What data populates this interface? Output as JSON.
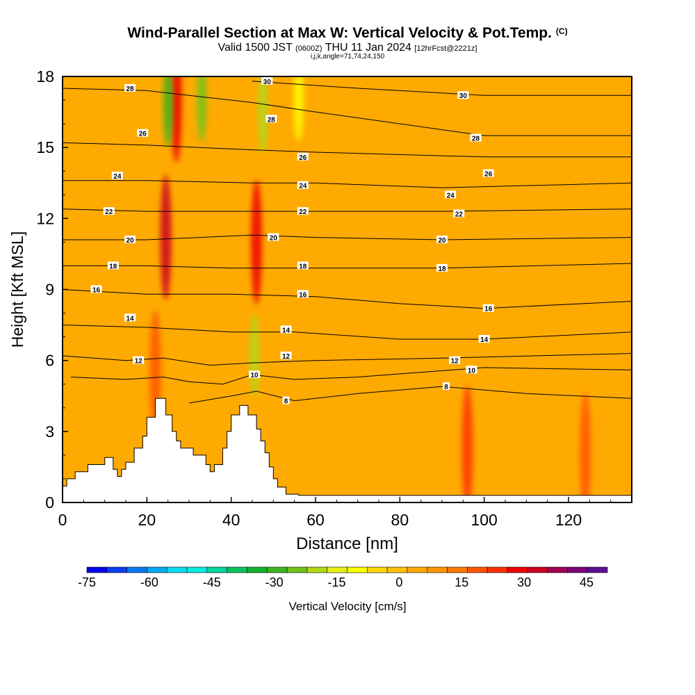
{
  "header": {
    "title": "Wind-Parallel Section at Max W: Vertical Velocity & Pot.Temp.",
    "copyright": "(C)",
    "valid_prefix": "Valid 1500 JST",
    "valid_utc": "(0600Z)",
    "valid_date": "THU 11 Jan 2024",
    "forecast": "[12hrFcst@2221z]",
    "params": "i,j,k,angle=71,74,24,150"
  },
  "chart_data": {
    "type": "heatmap",
    "xlabel": "Distance [nm]",
    "ylabel": "Height [Kft MSL]",
    "xlim": [
      0,
      135
    ],
    "ylim": [
      0,
      18
    ],
    "x_ticks": [
      0,
      20,
      40,
      60,
      80,
      100,
      120
    ],
    "y_ticks": [
      0,
      3,
      6,
      9,
      12,
      15,
      18
    ],
    "grid": false,
    "colorbar": {
      "label": "Vertical Velocity [cm/s]",
      "tick_labels": [
        -75,
        -60,
        -45,
        -30,
        -15,
        0,
        15,
        30,
        45
      ],
      "range": [
        -75,
        50
      ],
      "colors": [
        "#0000ee",
        "#0a3fee",
        "#0b77ee",
        "#00aaee",
        "#00ddee",
        "#00eedd",
        "#00d49f",
        "#0bc15f",
        "#11b02c",
        "#3eb51e",
        "#6fc41a",
        "#b0d81a",
        "#e6ef10",
        "#ffff00",
        "#ffd700",
        "#ffc000",
        "#ffaa00",
        "#ff9500",
        "#ff7a00",
        "#ff5500",
        "#ff3000",
        "#ee0000",
        "#cc0022",
        "#a00055",
        "#7a0077",
        "#5a1090"
      ]
    },
    "background_w_cms": 5,
    "terrain": {
      "x": [
        0,
        1,
        1,
        3,
        3,
        6,
        6,
        10,
        10,
        12,
        12,
        13,
        13,
        14,
        14,
        15,
        15,
        17,
        17,
        19,
        19,
        20,
        20,
        22,
        22,
        24.5,
        24.5,
        26,
        26,
        27,
        27,
        28,
        28,
        31,
        31,
        34,
        34,
        35,
        35,
        36,
        36,
        38,
        38,
        39,
        39,
        40,
        40,
        42,
        42,
        44,
        44,
        46,
        46,
        47,
        47,
        48,
        48,
        49,
        49,
        50,
        50,
        51,
        51,
        53,
        53,
        56,
        56,
        135
      ],
      "y": [
        0.7,
        0.7,
        1.0,
        1.0,
        1.3,
        1.3,
        1.6,
        1.6,
        1.9,
        1.9,
        1.4,
        1.4,
        1.1,
        1.1,
        1.4,
        1.4,
        1.7,
        1.7,
        2.3,
        2.3,
        2.8,
        2.8,
        3.6,
        3.6,
        4.4,
        4.4,
        3.7,
        3.7,
        3.0,
        3.0,
        2.6,
        2.6,
        2.3,
        2.3,
        2.0,
        2.0,
        1.6,
        1.6,
        1.3,
        1.3,
        1.6,
        1.6,
        2.3,
        2.3,
        3.0,
        3.0,
        3.7,
        3.7,
        4.1,
        4.1,
        3.7,
        3.7,
        3.1,
        3.1,
        2.6,
        2.6,
        2.1,
        2.1,
        1.5,
        1.5,
        1.0,
        1.0,
        0.65,
        0.65,
        0.35,
        0.35,
        0.3,
        0.3
      ]
    },
    "updrafts": [
      {
        "x": 24.5,
        "y": 11.2,
        "w": 35
      },
      {
        "x": 27,
        "y": 17,
        "w": 30
      },
      {
        "x": 46,
        "y": 11.0,
        "w": 30
      },
      {
        "x": 96,
        "y": 2.3,
        "w": 25
      },
      {
        "x": 22,
        "y": 5.5,
        "w": 20
      },
      {
        "x": 124,
        "y": 2.0,
        "w": 18
      }
    ],
    "downdrafts": [
      {
        "x": 25,
        "y": 16.8,
        "w": -30
      },
      {
        "x": 33,
        "y": 17.0,
        "w": -25
      },
      {
        "x": 47.5,
        "y": 16.5,
        "w": -20
      },
      {
        "x": 45.5,
        "y": 6.2,
        "w": -20
      },
      {
        "x": 56,
        "y": 17.0,
        "w": -10
      }
    ],
    "theta_contours": [
      {
        "label": "8",
        "points": [
          [
            30,
            4.2
          ],
          [
            40,
            4.5
          ],
          [
            46,
            4.7
          ],
          [
            55,
            4.3
          ],
          [
            70,
            4.6
          ],
          [
            90,
            4.9
          ],
          [
            110,
            4.6
          ],
          [
            135,
            4.4
          ]
        ]
      },
      {
        "label": "10",
        "points": [
          [
            2,
            5.3
          ],
          [
            15,
            5.2
          ],
          [
            24,
            5.3
          ],
          [
            30,
            5.1
          ],
          [
            38,
            5.0
          ],
          [
            45,
            5.4
          ],
          [
            55,
            5.2
          ],
          [
            70,
            5.3
          ],
          [
            100,
            5.7
          ],
          [
            135,
            5.6
          ]
        ]
      },
      {
        "label": "12",
        "points": [
          [
            0,
            6.2
          ],
          [
            15,
            6.0
          ],
          [
            24,
            6.1
          ],
          [
            35,
            5.8
          ],
          [
            45,
            5.9
          ],
          [
            60,
            6.0
          ],
          [
            90,
            6.1
          ],
          [
            135,
            6.3
          ]
        ]
      },
      {
        "label": "14",
        "points": [
          [
            0,
            7.5
          ],
          [
            20,
            7.4
          ],
          [
            40,
            7.2
          ],
          [
            55,
            7.2
          ],
          [
            80,
            6.9
          ],
          [
            100,
            6.9
          ],
          [
            135,
            7.2
          ]
        ]
      },
      {
        "label": "16",
        "points": [
          [
            0,
            9.0
          ],
          [
            20,
            8.8
          ],
          [
            40,
            8.8
          ],
          [
            60,
            8.7
          ],
          [
            80,
            8.4
          ],
          [
            100,
            8.2
          ],
          [
            135,
            8.5
          ]
        ]
      },
      {
        "label": "18",
        "points": [
          [
            0,
            10.0
          ],
          [
            20,
            10.0
          ],
          [
            40,
            9.9
          ],
          [
            60,
            9.9
          ],
          [
            90,
            9.9
          ],
          [
            135,
            10.1
          ]
        ]
      },
      {
        "label": "20",
        "points": [
          [
            0,
            11.1
          ],
          [
            20,
            11.1
          ],
          [
            45,
            11.3
          ],
          [
            60,
            11.2
          ],
          [
            90,
            11.1
          ],
          [
            135,
            11.2
          ]
        ]
      },
      {
        "label": "22",
        "points": [
          [
            0,
            12.4
          ],
          [
            20,
            12.3
          ],
          [
            40,
            12.3
          ],
          [
            60,
            12.3
          ],
          [
            90,
            12.3
          ],
          [
            135,
            12.4
          ]
        ]
      },
      {
        "label": "24",
        "points": [
          [
            0,
            13.6
          ],
          [
            20,
            13.6
          ],
          [
            45,
            13.5
          ],
          [
            60,
            13.5
          ],
          [
            90,
            13.3
          ],
          [
            135,
            13.5
          ]
        ]
      },
      {
        "label": "26",
        "points": [
          [
            0,
            15.2
          ],
          [
            20,
            15.1
          ],
          [
            45,
            14.9
          ],
          [
            60,
            14.8
          ],
          [
            100,
            14.6
          ],
          [
            135,
            14.6
          ]
        ]
      },
      {
        "label": "28",
        "points": [
          [
            0,
            17.5
          ],
          [
            20,
            17.4
          ],
          [
            45,
            16.9
          ],
          [
            60,
            16.5
          ],
          [
            100,
            15.5
          ],
          [
            135,
            15.5
          ]
        ]
      },
      {
        "label": "30",
        "points": [
          [
            45,
            17.8
          ],
          [
            70,
            17.5
          ],
          [
            100,
            17.2
          ],
          [
            135,
            17.2
          ]
        ]
      }
    ],
    "theta_labels": [
      {
        "text": "28",
        "x": 16,
        "y": 17.5
      },
      {
        "text": "26",
        "x": 19,
        "y": 15.6
      },
      {
        "text": "24",
        "x": 13,
        "y": 13.8
      },
      {
        "text": "22",
        "x": 11,
        "y": 12.3
      },
      {
        "text": "20",
        "x": 16,
        "y": 11.1
      },
      {
        "text": "18",
        "x": 12,
        "y": 10.0
      },
      {
        "text": "16",
        "x": 8,
        "y": 9.0
      },
      {
        "text": "14",
        "x": 16,
        "y": 7.8
      },
      {
        "text": "12",
        "x": 18,
        "y": 6.0
      },
      {
        "text": "30",
        "x": 48.5,
        "y": 17.8
      },
      {
        "text": "28",
        "x": 49.5,
        "y": 16.2
      },
      {
        "text": "26",
        "x": 57,
        "y": 14.6
      },
      {
        "text": "24",
        "x": 57,
        "y": 13.4
      },
      {
        "text": "22",
        "x": 57,
        "y": 12.3
      },
      {
        "text": "20",
        "x": 50,
        "y": 11.2
      },
      {
        "text": "18",
        "x": 57,
        "y": 10.0
      },
      {
        "text": "16",
        "x": 57,
        "y": 8.8
      },
      {
        "text": "14",
        "x": 53,
        "y": 7.3
      },
      {
        "text": "12",
        "x": 53,
        "y": 6.2
      },
      {
        "text": "10",
        "x": 45.5,
        "y": 5.4
      },
      {
        "text": "8",
        "x": 53,
        "y": 4.3
      },
      {
        "text": "30",
        "x": 95,
        "y": 17.2
      },
      {
        "text": "28",
        "x": 98,
        "y": 15.4
      },
      {
        "text": "26",
        "x": 101,
        "y": 13.9
      },
      {
        "text": "24",
        "x": 92,
        "y": 13.0
      },
      {
        "text": "22",
        "x": 94,
        "y": 12.2
      },
      {
        "text": "20",
        "x": 90,
        "y": 11.1
      },
      {
        "text": "18",
        "x": 90,
        "y": 9.9
      },
      {
        "text": "16",
        "x": 101,
        "y": 8.2
      },
      {
        "text": "14",
        "x": 100,
        "y": 6.9
      },
      {
        "text": "12",
        "x": 93,
        "y": 6.0
      },
      {
        "text": "10",
        "x": 97,
        "y": 5.6
      },
      {
        "text": "8",
        "x": 91,
        "y": 4.9
      }
    ]
  }
}
